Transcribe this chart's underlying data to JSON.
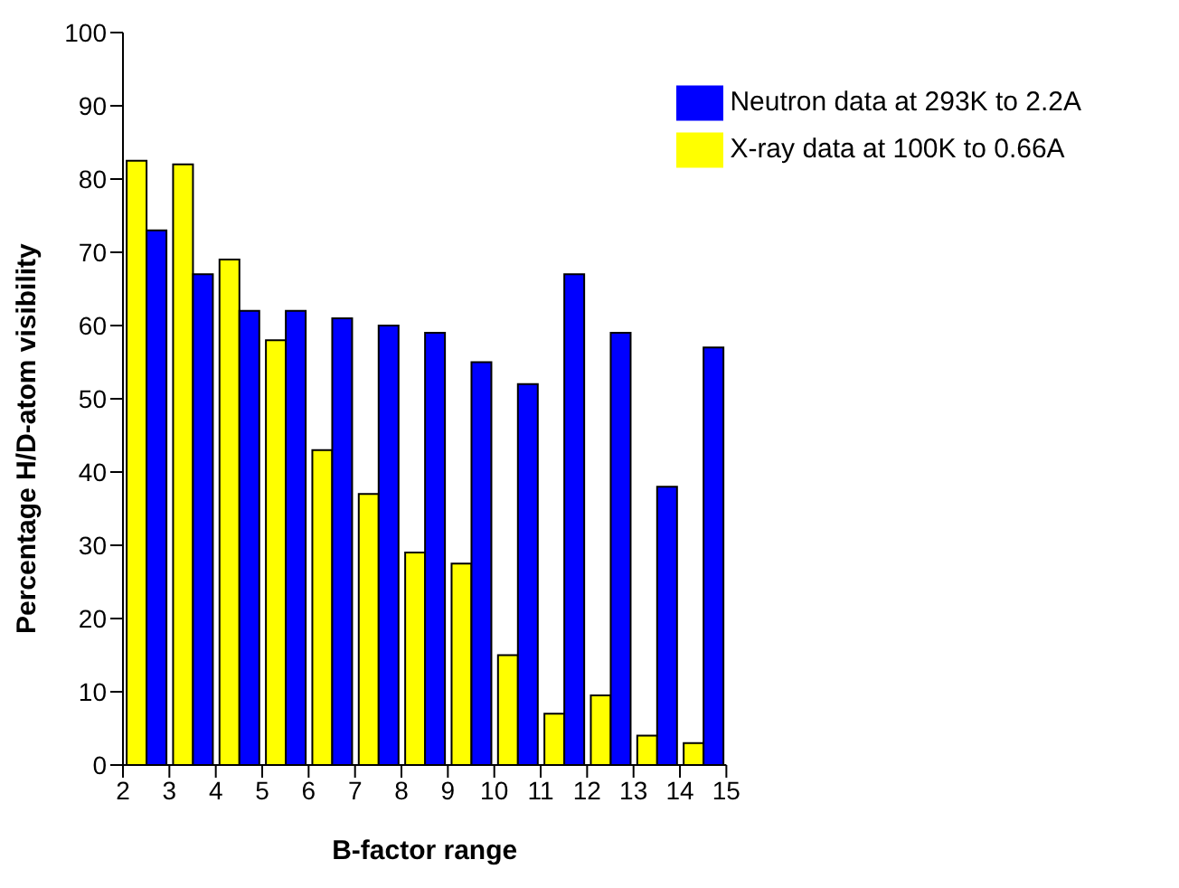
{
  "chart_data": {
    "type": "bar",
    "xlabel": "B-factor range",
    "ylabel": "Percentage H/D-atom visibility",
    "x": [
      2.5,
      3.5,
      4.5,
      5.5,
      6.5,
      7.5,
      8.5,
      9.5,
      10.5,
      11.5,
      12.5,
      13.5,
      14.5
    ],
    "series": [
      {
        "name": "X-ray data at 100K to 0.66A",
        "color": "#ffff00",
        "values": [
          82.5,
          82,
          69,
          58,
          43,
          37,
          29,
          27.5,
          15,
          7,
          9.5,
          4,
          3
        ]
      },
      {
        "name": "Neutron data at 293K to 2.2A",
        "color": "#0000ff",
        "values": [
          73,
          67,
          62,
          62,
          61,
          60,
          59,
          55,
          52,
          67,
          59,
          38,
          57
        ]
      }
    ],
    "xlim": [
      2,
      15
    ],
    "xticks": [
      2,
      3,
      4,
      5,
      6,
      7,
      8,
      9,
      10,
      11,
      12,
      13,
      14,
      15
    ],
    "ylim": [
      0,
      100
    ],
    "yticks": [
      0,
      10,
      20,
      30,
      40,
      50,
      60,
      70,
      80,
      90,
      100
    ],
    "grid": false,
    "legend": "top right"
  }
}
